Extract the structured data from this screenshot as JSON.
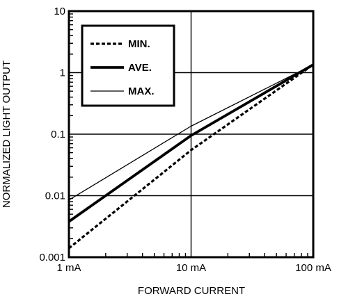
{
  "chart_data": {
    "type": "line",
    "xlabel": "FORWARD CURRENT",
    "ylabel": "NORMALIZED LIGHT OUTPUT",
    "x_scale": "log",
    "y_scale": "log",
    "xlim_mA": [
      1,
      100
    ],
    "ylim": [
      0.001,
      10
    ],
    "x_ticks": [
      {
        "value": 1,
        "label": "1 mA"
      },
      {
        "value": 10,
        "label": "10 mA"
      },
      {
        "value": 100,
        "label": "100 mA"
      }
    ],
    "y_ticks": [
      {
        "value": 0.001,
        "label": "0.001"
      },
      {
        "value": 0.01,
        "label": "0.01"
      },
      {
        "value": 0.1,
        "label": "0.1"
      },
      {
        "value": 1,
        "label": "1"
      },
      {
        "value": 10,
        "label": "10"
      }
    ],
    "grid": true,
    "legend_position": "top-left",
    "series": [
      {
        "name": "MIN.",
        "style": "dashed",
        "x_mA": [
          1,
          10,
          100
        ],
        "y": [
          0.0014,
          0.055,
          1.35
        ]
      },
      {
        "name": "AVE.",
        "style": "thick",
        "x_mA": [
          1,
          10,
          100
        ],
        "y": [
          0.0038,
          0.095,
          1.35
        ]
      },
      {
        "name": "MAX.",
        "style": "thin",
        "x_mA": [
          1,
          10,
          100
        ],
        "y": [
          0.0085,
          0.135,
          1.35
        ]
      }
    ],
    "colors": {
      "line": "#000000",
      "background": "#ffffff"
    }
  }
}
